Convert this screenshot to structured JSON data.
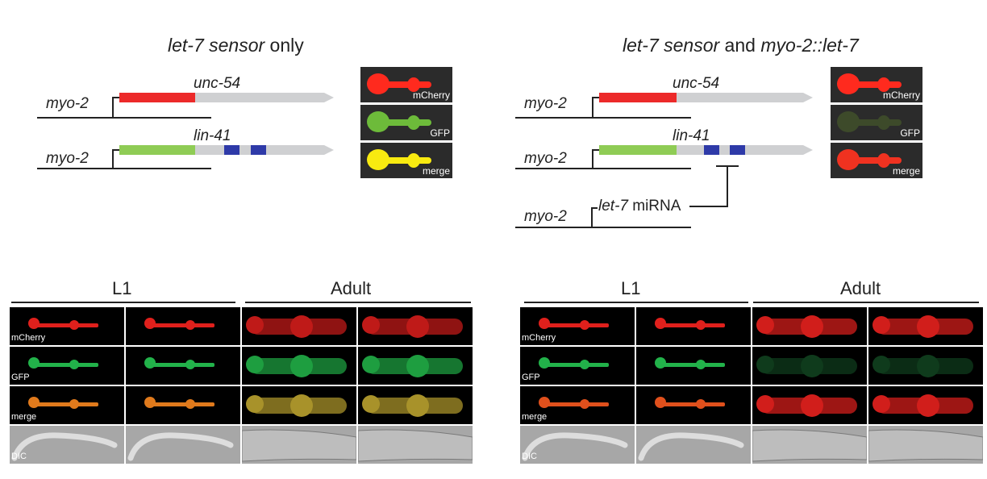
{
  "panels": [
    {
      "title_parts": [
        {
          "text": "let-7 sensor",
          "italic": true
        },
        {
          "text": " only",
          "italic": false
        }
      ],
      "constructs": [
        {
          "promoter": "myo-2",
          "utr": "unc-54",
          "reporter_color": "#ec2a2a",
          "mirna_sites": 0
        },
        {
          "promoter": "myo-2",
          "utr": "lin-41",
          "reporter_color": "#8fcc55",
          "mirna_sites": 2
        }
      ],
      "mirna_construct": null,
      "expression": [
        {
          "label": "mCherry",
          "color": "#ff2a1e"
        },
        {
          "label": "GFP",
          "color": "#6dbb3a"
        },
        {
          "label": "merge",
          "color": "#f8ea10"
        }
      ],
      "stages": [
        "L1",
        "Adult"
      ],
      "rows": [
        {
          "label": "mCherry",
          "kind": "mcherry",
          "colors": [
            "#e0201c",
            "#e0201c",
            "#bf1a18",
            "#bf1a18"
          ]
        },
        {
          "label": "GFP",
          "kind": "gfp",
          "colors": [
            "#22b24a",
            "#22b24a",
            "#1e9e40",
            "#1e9e40"
          ]
        },
        {
          "label": "merge",
          "kind": "merge",
          "colors": [
            "#e07a1c",
            "#e07a1c",
            "#a8922a",
            "#a8922a"
          ]
        },
        {
          "label": "DIC",
          "kind": "dic",
          "colors": [
            "#dddddd",
            "#dddddd",
            "#dddddd",
            "#dddddd"
          ]
        }
      ]
    },
    {
      "title_parts": [
        {
          "text": "let-7 sensor",
          "italic": true
        },
        {
          "text": " and ",
          "italic": false
        },
        {
          "text": "myo-2::let-7",
          "italic": true
        }
      ],
      "constructs": [
        {
          "promoter": "myo-2",
          "utr": "unc-54",
          "reporter_color": "#ec2a2a",
          "mirna_sites": 0
        },
        {
          "promoter": "myo-2",
          "utr": "lin-41",
          "reporter_color": "#8fcc55",
          "mirna_sites": 2
        }
      ],
      "mirna_construct": {
        "promoter": "myo-2",
        "name": "let-7",
        "suffix": " miRNA"
      },
      "expression": [
        {
          "label": "mCherry",
          "color": "#ff2a1e"
        },
        {
          "label": "GFP",
          "color": "#3d4a2a"
        },
        {
          "label": "merge",
          "color": "#f03220"
        }
      ],
      "stages": [
        "L1",
        "Adult"
      ],
      "rows": [
        {
          "label": "mCherry",
          "kind": "mcherry",
          "colors": [
            "#e0201c",
            "#e0201c",
            "#d11e1b",
            "#d11e1b"
          ]
        },
        {
          "label": "GFP",
          "kind": "gfp",
          "colors": [
            "#22b24a",
            "#22b24a",
            "#0f3b1c",
            "#0f3b1c"
          ]
        },
        {
          "label": "merge",
          "kind": "merge",
          "colors": [
            "#e0501c",
            "#e0501c",
            "#d11e1b",
            "#d11e1b"
          ]
        },
        {
          "label": "DIC",
          "kind": "dic",
          "colors": [
            "#dddddd",
            "#dddddd",
            "#dddddd",
            "#dddddd"
          ]
        }
      ]
    }
  ]
}
